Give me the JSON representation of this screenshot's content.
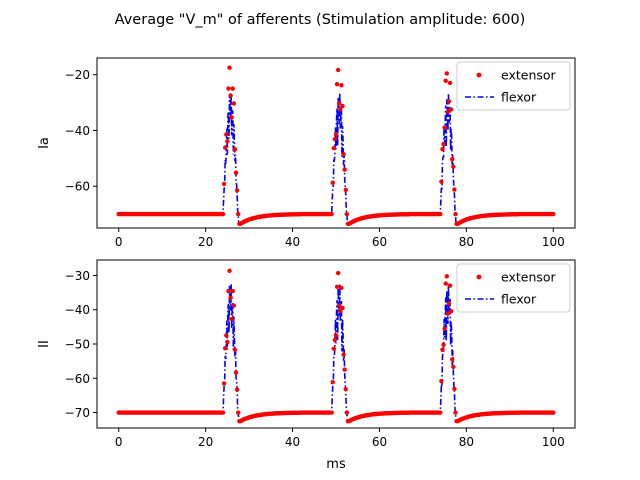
{
  "figure": {
    "title": "Average \"V_m\" of afferents (Stimulation amplitude: 600)"
  },
  "chart_data": [
    {
      "type": "scatter",
      "ylabel": "Ia",
      "xlabel": "",
      "xlim": [
        -5,
        105
      ],
      "ylim": [
        -75,
        -14
      ],
      "xticks": [
        0,
        20,
        40,
        60,
        80,
        100
      ],
      "yticks": [
        -60,
        -40,
        -20
      ],
      "grid": false,
      "legend_position": "top-right",
      "series": [
        {
          "name": "extensor",
          "style": "red-dots",
          "color": "#ff0000"
        },
        {
          "name": "flexor",
          "style": "blue-dashdot",
          "color": "#0000ff"
        }
      ],
      "waveform": {
        "rest": -70,
        "sample_step": 0.25,
        "x_range": [
          0,
          100
        ],
        "spike_times": [
          25,
          50,
          75
        ],
        "extensor_peak": -16,
        "flexor_peak": -26,
        "undershoot": -73.5
      }
    },
    {
      "type": "scatter",
      "ylabel": "II",
      "xlabel": "ms",
      "xlim": [
        -5,
        105
      ],
      "ylim": [
        -74.5,
        -25.5
      ],
      "xticks": [
        0,
        20,
        40,
        60,
        80,
        100
      ],
      "yticks": [
        -70,
        -60,
        -50,
        -40,
        -30
      ],
      "grid": false,
      "legend_position": "top-right",
      "series": [
        {
          "name": "extensor",
          "style": "red-dots",
          "color": "#ff0000"
        },
        {
          "name": "flexor",
          "style": "blue-dashdot",
          "color": "#0000ff"
        }
      ],
      "waveform": {
        "rest": -70,
        "sample_step": 0.25,
        "x_range": [
          0,
          100
        ],
        "spike_times": [
          25,
          50,
          75
        ],
        "extensor_peak": -27.5,
        "flexor_peak": -32,
        "undershoot": -72.5
      }
    }
  ]
}
